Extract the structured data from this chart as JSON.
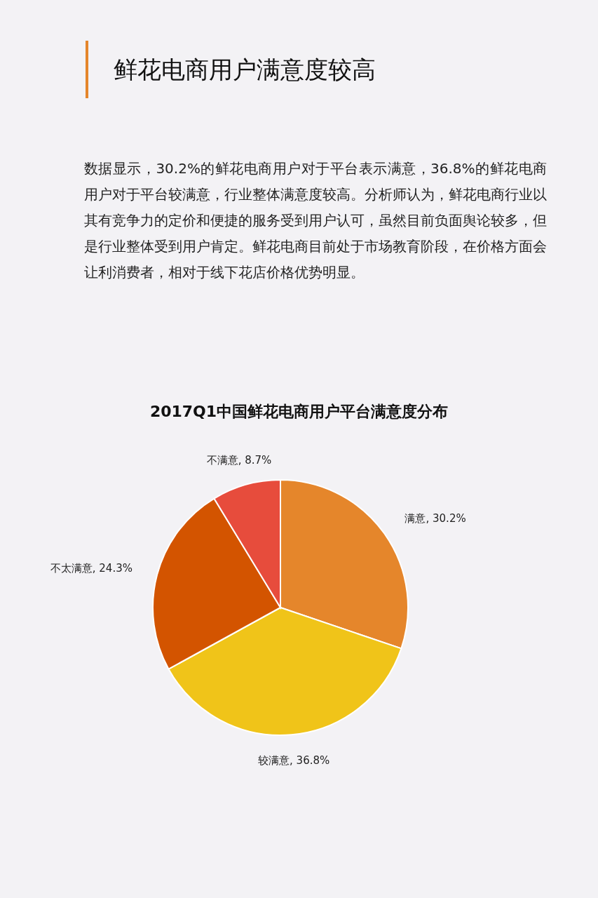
{
  "chart_data": {
    "type": "pie",
    "title": "鲜花电商用户满意度较高",
    "subtitle": "2017Q1中国鲜花电商用户平台满意度分布",
    "annotations": [
      "数据显示，30.2%的鲜花电商用户对于平台表示满意，36.8%的鲜花电商用户对于平台较满意，行业整体满意度较高。分析师认为，鲜花电商行业以其有竞争力的定价和便捷的服务受到用户认可，虽然目前负面舆论较多，但是行业整体受到用户肯定。鲜花电商目前处于市场教育阶段，在价格方面会让利消费者，相对于线下花店价格优势明显。"
    ],
    "categories": [
      "满意",
      "较满意",
      "不太满意",
      "不满意"
    ],
    "values": [
      30.2,
      36.8,
      24.3,
      8.7
    ],
    "value_labels": [
      "30.2%",
      "36.8%",
      "24.3%",
      "8.7%"
    ],
    "colors": [
      "#e5862b",
      "#f0c419",
      "#d35400",
      "#e74c3c"
    ],
    "legend": false
  }
}
